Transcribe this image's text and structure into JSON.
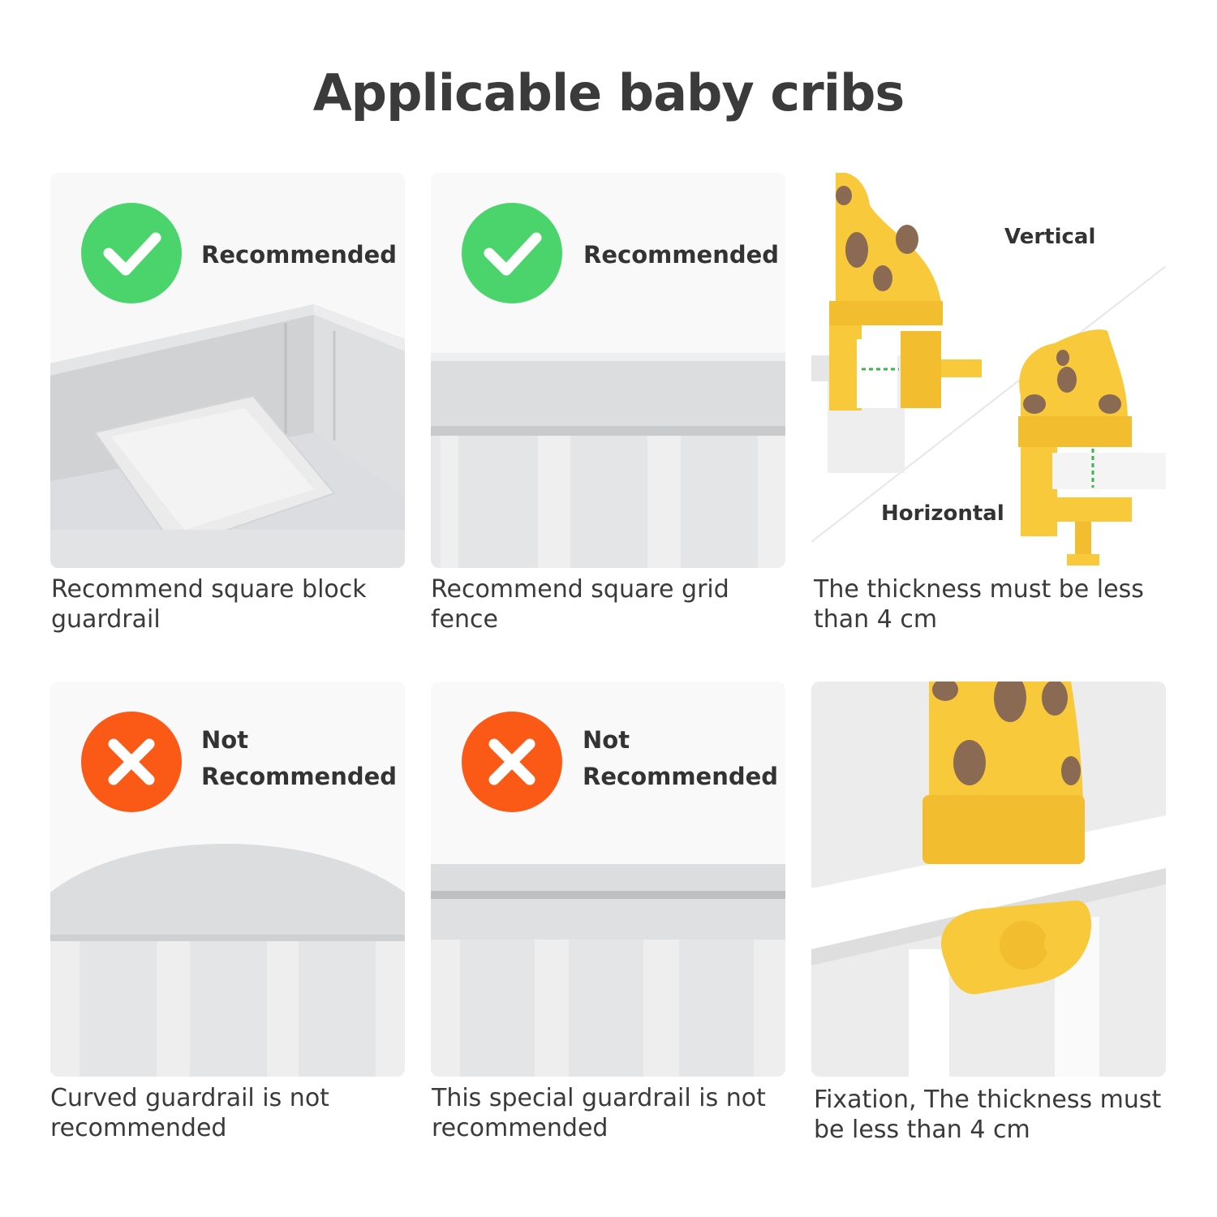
{
  "title": "Applicable baby cribs",
  "colors": {
    "recommended": "#4cd46c",
    "not_recommended": "#fb5a16",
    "giraffe_yellow": "#f7c93b",
    "giraffe_spot": "#8a6a52"
  },
  "cards": [
    {
      "badge_icon": "check-icon",
      "badge_label": "Recommended",
      "caption": "Recommend square block guardrail"
    },
    {
      "badge_icon": "check-icon",
      "badge_label": "Recommended",
      "caption": "Recommend square grid fence"
    },
    {
      "tag_top": "Vertical",
      "tag_bottom": "Horizontal",
      "caption": "The thickness must be less than 4 cm"
    },
    {
      "badge_icon": "cross-icon",
      "badge_label_line1": "Not",
      "badge_label_line2": "Recommended",
      "caption": "Curved guardrail is not recommended"
    },
    {
      "badge_icon": "cross-icon",
      "badge_label_line1": "Not",
      "badge_label_line2": "Recommended",
      "caption": "This special guardrail is not recommended"
    },
    {
      "caption": "Fixation, The thickness must be less than 4 cm"
    }
  ]
}
